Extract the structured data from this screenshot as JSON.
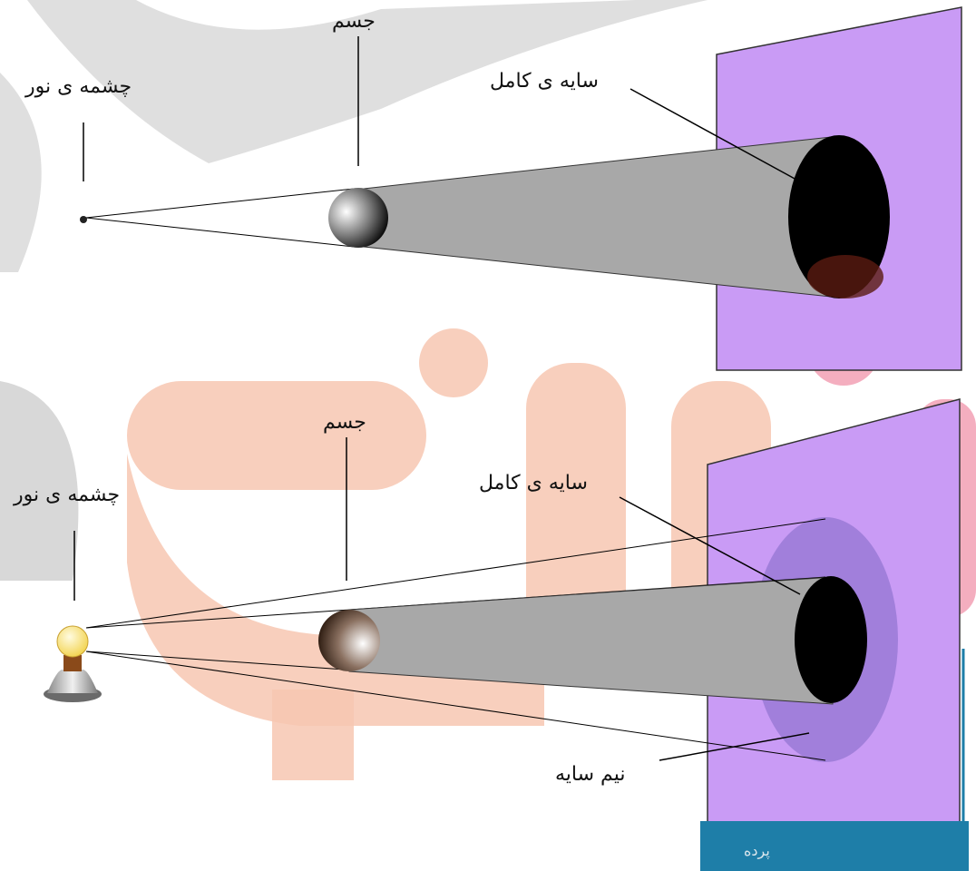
{
  "diagram_top": {
    "light_source_label": "چشمه ی نور",
    "object_label": "جسم",
    "umbra_label": "سایه ی کامل"
  },
  "diagram_bottom": {
    "light_source_label": "چشمه ی نور",
    "object_label": "جسم",
    "umbra_label": "سایه ی کامل",
    "penumbra_label": "نیم سایه",
    "screen_label": "پرده"
  },
  "colors": {
    "screen": "#c89af2",
    "screen_base": "#1d7fa8",
    "shadow_cone": "#a9a9a9",
    "umbra": "#000000",
    "penumbra": "#9878d8",
    "watermark_orange": "#f6c3b0",
    "watermark_gray": "#d8d8d8",
    "bulb": "#f7e27a"
  }
}
